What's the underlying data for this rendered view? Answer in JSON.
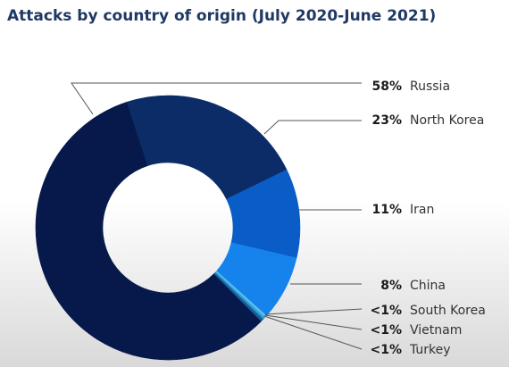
{
  "chart_data": {
    "type": "donut",
    "title": "Attacks by country of origin (July 2020-June 2021)",
    "categories": [
      "Russia",
      "North Korea",
      "Iran",
      "China",
      "South Korea",
      "Vietnam",
      "Turkey"
    ],
    "values": [
      58,
      23,
      11,
      8,
      0.3,
      0.3,
      0.3
    ],
    "value_labels": [
      "58%",
      "23%",
      "11%",
      "8%",
      "<1%",
      "<1%",
      "<1%"
    ],
    "colors": [
      "#07184a",
      "#0b2c66",
      "#0a5cc6",
      "#1683ec",
      "#5cc0e8",
      "#2b9fd6",
      "#1b5c9c"
    ]
  }
}
